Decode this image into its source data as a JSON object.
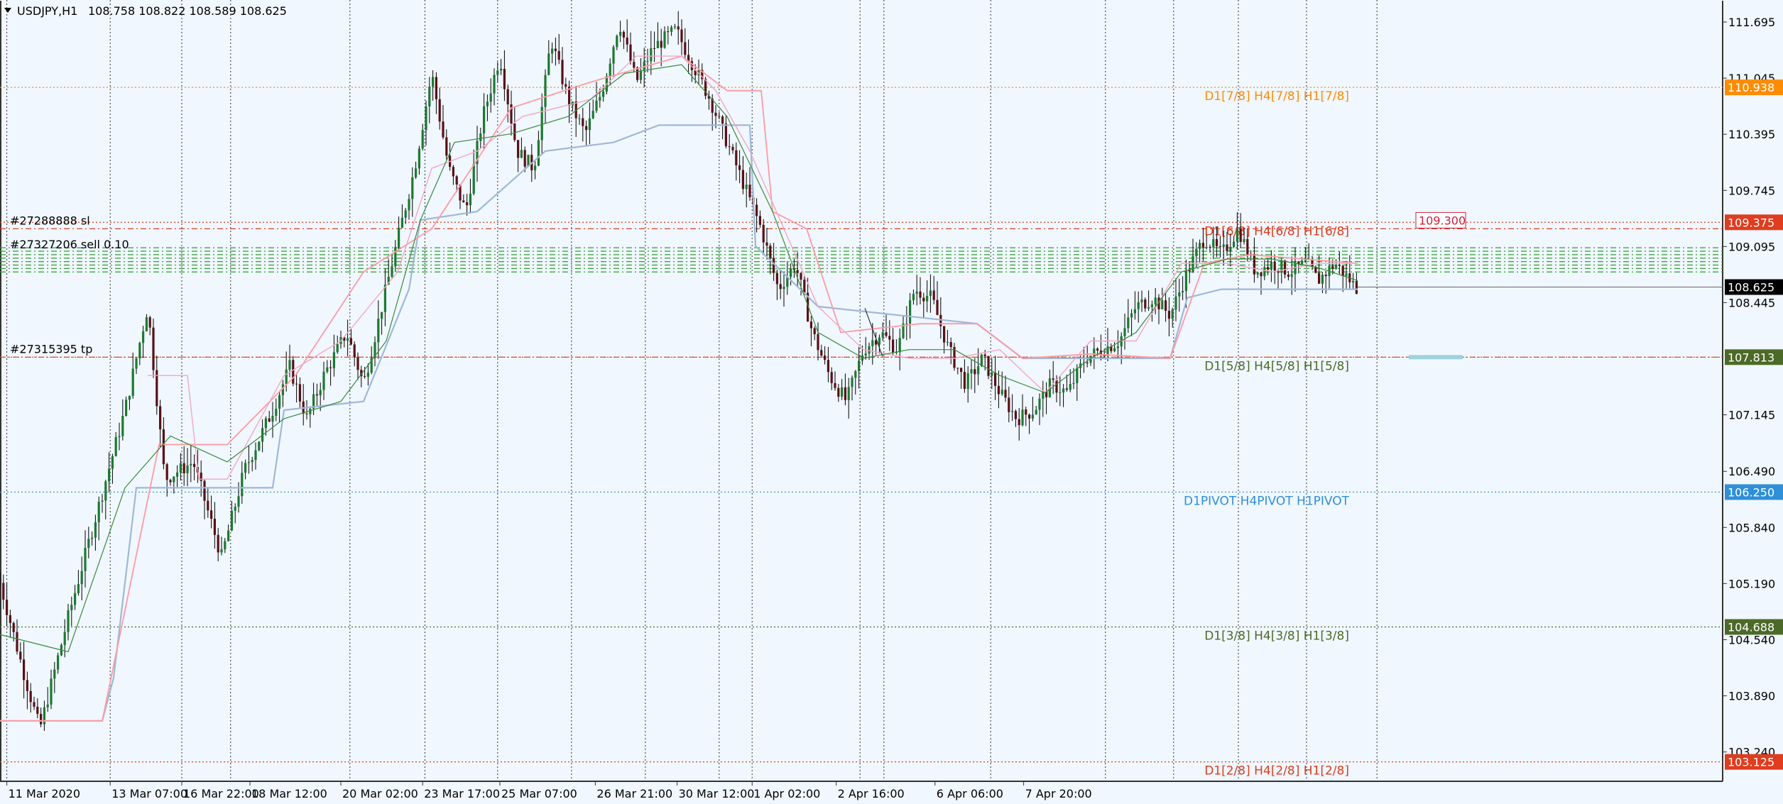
{
  "header": {
    "symbol_timeframe": "USDJPY,H1",
    "ohlc": "108.758 108.822 108.589 108.625"
  },
  "colors": {
    "background": "#f0f7ff",
    "grid": "#333333",
    "candle_up": "#1b7a2e",
    "candle_down": "#5a0f14",
    "candle_wick": "#000000",
    "ma_green": "#3a8a3a",
    "ma_pink": "#f2a7c4",
    "ma_salmon": "#ff9aa2",
    "ma_blue": "#9fb8d6",
    "orange": "#ff8c00",
    "red": "#e03c1e",
    "olive": "#4c6a27",
    "blue": "#2f8fd8",
    "order_green": "#2e9e2e",
    "price_black": "#000000",
    "order_tag": "#cc1f3c",
    "target_box": "#9cd3dc"
  },
  "chart_data": {
    "type": "candlestick",
    "symbol": "USDJPY",
    "timeframe": "H1",
    "ylim": [
      102.9,
      111.95
    ],
    "y_ticks": [
      "111.695",
      "111.045",
      "110.395",
      "109.745",
      "109.095",
      "108.445",
      "107.145",
      "106.490",
      "105.840",
      "105.190",
      "104.540",
      "103.890",
      "103.240"
    ],
    "x_ticks": [
      "11 Mar 2020",
      "13 Mar 07:00",
      "16 Mar 22:00",
      "18 Mar 12:00",
      "20 Mar 02:00",
      "23 Mar 17:00",
      "25 Mar 07:00",
      "26 Mar 21:00",
      "30 Mar 12:00",
      "1 Apr 02:00",
      "2 Apr 16:00",
      "6 Apr 06:00",
      "7 Apr 20:00"
    ],
    "last_price": "108.625",
    "path_points": [
      [
        0,
        105.2
      ],
      [
        20,
        104.2
      ],
      [
        35,
        103.5
      ],
      [
        60,
        104.8
      ],
      [
        85,
        106.0
      ],
      [
        110,
        107.2
      ],
      [
        130,
        108.4
      ],
      [
        145,
        106.4
      ],
      [
        170,
        106.6
      ],
      [
        195,
        105.5
      ],
      [
        215,
        106.5
      ],
      [
        240,
        107.2
      ],
      [
        255,
        107.7
      ],
      [
        270,
        107.1
      ],
      [
        285,
        107.6
      ],
      [
        305,
        108.1
      ],
      [
        320,
        107.5
      ],
      [
        345,
        108.9
      ],
      [
        365,
        110.0
      ],
      [
        380,
        111.1
      ],
      [
        395,
        110.0
      ],
      [
        410,
        109.5
      ],
      [
        425,
        110.6
      ],
      [
        440,
        111.3
      ],
      [
        455,
        110.2
      ],
      [
        470,
        110.0
      ],
      [
        485,
        111.5
      ],
      [
        500,
        110.8
      ],
      [
        515,
        110.4
      ],
      [
        530,
        110.9
      ],
      [
        545,
        111.7
      ],
      [
        560,
        111.0
      ],
      [
        575,
        111.4
      ],
      [
        595,
        111.6
      ],
      [
        610,
        111.2
      ],
      [
        625,
        110.8
      ],
      [
        640,
        110.3
      ],
      [
        655,
        109.8
      ],
      [
        670,
        109.3
      ],
      [
        685,
        108.6
      ],
      [
        700,
        108.9
      ],
      [
        715,
        108.1
      ],
      [
        730,
        107.6
      ],
      [
        745,
        107.3
      ],
      [
        760,
        107.9
      ],
      [
        775,
        108.1
      ],
      [
        790,
        107.9
      ],
      [
        805,
        108.6
      ],
      [
        820,
        108.5
      ],
      [
        835,
        107.9
      ],
      [
        850,
        107.5
      ],
      [
        865,
        107.8
      ],
      [
        880,
        107.4
      ],
      [
        895,
        107.1
      ],
      [
        910,
        107.2
      ],
      [
        925,
        107.5
      ],
      [
        940,
        107.4
      ],
      [
        955,
        107.8
      ],
      [
        970,
        107.9
      ],
      [
        985,
        108.0
      ],
      [
        1000,
        108.4
      ],
      [
        1015,
        108.5
      ],
      [
        1030,
        108.3
      ],
      [
        1045,
        108.8
      ],
      [
        1060,
        109.2
      ],
      [
        1075,
        109.0
      ],
      [
        1090,
        109.3
      ],
      [
        1105,
        108.8
      ],
      [
        1120,
        108.9
      ],
      [
        1135,
        108.8
      ],
      [
        1150,
        108.9
      ],
      [
        1160,
        108.7
      ],
      [
        1175,
        108.9
      ],
      [
        1195,
        108.6
      ]
    ],
    "ma_green": [
      [
        0,
        104.6
      ],
      [
        60,
        104.4
      ],
      [
        110,
        106.3
      ],
      [
        150,
        106.9
      ],
      [
        200,
        106.6
      ],
      [
        250,
        107.1
      ],
      [
        300,
        107.3
      ],
      [
        340,
        108.0
      ],
      [
        370,
        109.4
      ],
      [
        400,
        110.3
      ],
      [
        450,
        110.4
      ],
      [
        500,
        110.6
      ],
      [
        550,
        111.1
      ],
      [
        600,
        111.2
      ],
      [
        640,
        110.6
      ],
      [
        680,
        109.5
      ],
      [
        720,
        108.1
      ],
      [
        760,
        107.8
      ],
      [
        800,
        107.9
      ],
      [
        840,
        107.9
      ],
      [
        880,
        107.6
      ],
      [
        920,
        107.4
      ],
      [
        960,
        107.8
      ],
      [
        1000,
        108.1
      ],
      [
        1040,
        108.8
      ],
      [
        1080,
        108.95
      ],
      [
        1120,
        108.95
      ],
      [
        1160,
        108.85
      ],
      [
        1195,
        108.7
      ]
    ],
    "ma_pink": [
      [
        130,
        107.6
      ],
      [
        165,
        107.6
      ],
      [
        175,
        106.4
      ],
      [
        200,
        106.4
      ],
      [
        250,
        107.6
      ],
      [
        300,
        108.0
      ],
      [
        350,
        108.8
      ],
      [
        380,
        110.0
      ],
      [
        420,
        110.2
      ],
      [
        460,
        110.6
      ],
      [
        520,
        110.8
      ],
      [
        560,
        111.3
      ],
      [
        600,
        111.3
      ],
      [
        630,
        110.9
      ],
      [
        660,
        110.2
      ],
      [
        690,
        109.3
      ],
      [
        720,
        108.4
      ],
      [
        760,
        107.9
      ],
      [
        800,
        107.8
      ],
      [
        840,
        107.8
      ],
      [
        880,
        107.9
      ],
      [
        920,
        107.4
      ],
      [
        960,
        108.0
      ],
      [
        1000,
        108.0
      ],
      [
        1040,
        108.9
      ],
      [
        1080,
        108.9
      ],
      [
        1120,
        108.8
      ],
      [
        1160,
        108.9
      ],
      [
        1195,
        108.9
      ]
    ],
    "ma_salmon": [
      [
        0,
        103.6
      ],
      [
        90,
        103.6
      ],
      [
        140,
        106.8
      ],
      [
        200,
        106.8
      ],
      [
        260,
        107.6
      ],
      [
        320,
        108.8
      ],
      [
        380,
        109.3
      ],
      [
        450,
        110.7
      ],
      [
        520,
        111.0
      ],
      [
        600,
        111.3
      ],
      [
        640,
        110.9
      ],
      [
        670,
        110.9
      ],
      [
        680,
        109.5
      ],
      [
        710,
        109.3
      ],
      [
        740,
        108.1
      ],
      [
        810,
        108.2
      ],
      [
        860,
        108.2
      ],
      [
        900,
        107.8
      ],
      [
        960,
        107.85
      ],
      [
        1030,
        107.8
      ],
      [
        1060,
        108.9
      ],
      [
        1100,
        109.0
      ],
      [
        1195,
        108.9
      ]
    ],
    "ma_blue": [
      [
        0,
        103.6
      ],
      [
        90,
        103.6
      ],
      [
        100,
        104.1
      ],
      [
        120,
        106.3
      ],
      [
        240,
        106.3
      ],
      [
        250,
        107.2
      ],
      [
        320,
        107.3
      ],
      [
        360,
        108.6
      ],
      [
        370,
        109.4
      ],
      [
        420,
        109.5
      ],
      [
        480,
        110.2
      ],
      [
        540,
        110.3
      ],
      [
        580,
        110.5
      ],
      [
        660,
        110.5
      ],
      [
        665,
        109.1
      ],
      [
        720,
        108.4
      ],
      [
        860,
        108.2
      ],
      [
        900,
        107.8
      ],
      [
        1030,
        107.8
      ],
      [
        1045,
        108.5
      ],
      [
        1075,
        108.6
      ],
      [
        1195,
        108.6
      ]
    ],
    "levels": [
      {
        "label": "D1[7/8] H4[7/8] H1[7/8]",
        "price": 110.938,
        "tag": "110.938",
        "color": "orange",
        "style": "dotted",
        "text_color": "orange",
        "tag_fill": "orange"
      },
      {
        "label": "D1[6/8] H4[6/8] H1[6/8]",
        "price": 109.375,
        "tag": "109.375",
        "color": "red",
        "style": "dotted",
        "text_color": "red",
        "tag_fill": "red"
      },
      {
        "label": "D1[5/8] H4[5/8] H1[5/8]",
        "price": 107.813,
        "tag": "107.813",
        "color": "red",
        "style": "dotted",
        "text_color": "olive",
        "tag_fill": "olive"
      },
      {
        "label": "D1PIVOT H4PIVOT H1PIVOT",
        "price": 106.25,
        "tag": "106.250",
        "color": "blue",
        "style": "dotted",
        "text_color": "blue",
        "tag_fill": "blue"
      },
      {
        "label": "D1[3/8] H4[3/8] H1[3/8]",
        "price": 104.688,
        "tag": "104.688",
        "color": "olive",
        "style": "dotted",
        "text_color": "olive",
        "tag_fill": "olive"
      },
      {
        "label": "D1[2/8] H4[2/8] H1[2/8]",
        "price": 103.125,
        "tag": "103.125",
        "color": "red",
        "style": "dotted",
        "text_color": "red",
        "tag_fill": "red"
      }
    ],
    "orders": {
      "sl_label": "#27288888 sl",
      "sl_price": 109.3,
      "sl_tag": "109.300",
      "tp_label": "#27315395 tp",
      "tp_price": 107.813,
      "sell_label": "#27327206 sell 0.10",
      "sell_prices": [
        109.08,
        109.04,
        109.0,
        108.96,
        108.92,
        108.88,
        108.84,
        108.8
      ]
    },
    "forecast_line": {
      "from": [
        1218,
        108.38
      ],
      "to": [
        1243,
        107.82
      ]
    }
  }
}
